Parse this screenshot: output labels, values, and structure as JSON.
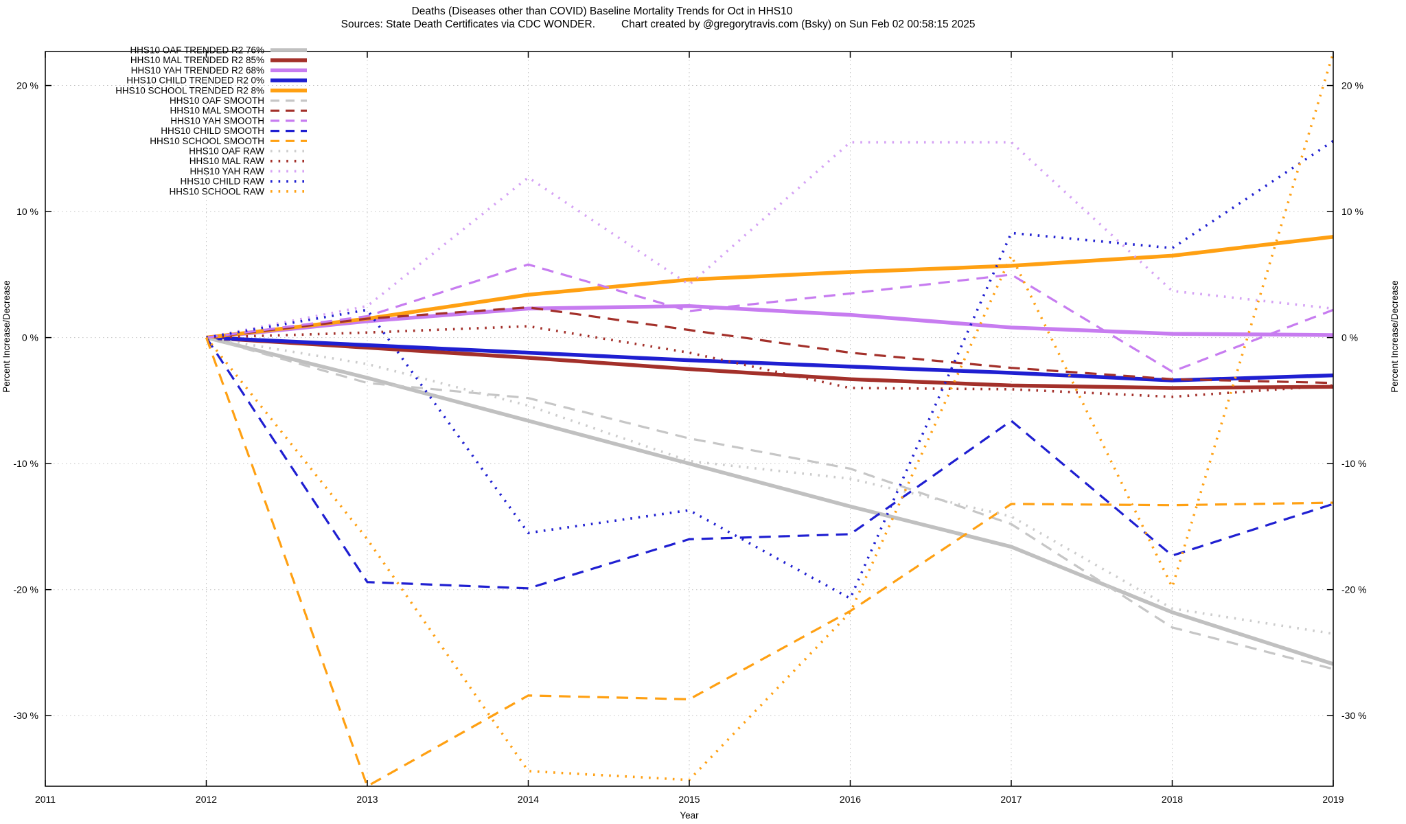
{
  "chart": {
    "title": "Deaths (Diseases other than COVID)  Baseline Mortality Trends for Oct in HHS10",
    "subtitle_sources": "Sources: State Death Certificates via CDC WONDER.",
    "subtitle_credit": "Chart created by @gregorytravis.com (Bsky) on Sun Feb 02 00:58:15 2025",
    "xlabel": "Year",
    "ylabel_left": "Percent Increase/Decrease",
    "ylabel_right": "Percent Increase/Decrease"
  },
  "chart_data": {
    "type": "line",
    "title": "Deaths (Diseases other than COVID)  Baseline Mortality Trends for Oct in HHS10",
    "xlabel": "Year",
    "ylabel": "Percent Increase/Decrease",
    "x_ticks": [
      2011,
      2012,
      2013,
      2014,
      2015,
      2016,
      2017,
      2018,
      2019
    ],
    "xlim": [
      2011,
      2019
    ],
    "ylim": [
      -35.6,
      22.7
    ],
    "y_ticks": [
      20,
      10,
      0,
      -10,
      -20,
      -30
    ],
    "y_tick_labels": [
      "20 %",
      "10 %",
      "0 %",
      "-10 %",
      "-20 %",
      "-30 %"
    ],
    "grid": true,
    "legend_position": "top-left",
    "x": [
      2012,
      2013,
      2014,
      2015,
      2016,
      2017,
      2018,
      2019
    ],
    "series": [
      {
        "label": "HHS10 OAF TRENDED R2  76%",
        "style": "solid",
        "color": "#c0c0c0",
        "values": [
          0,
          -3.2,
          -6.6,
          -10.0,
          -13.4,
          -16.6,
          -21.8,
          -25.9
        ]
      },
      {
        "label": "HHS10 MAL TRENDED R2  85%",
        "style": "solid",
        "color": "#a3302a",
        "values": [
          0,
          -0.8,
          -1.6,
          -2.5,
          -3.3,
          -3.8,
          -4.0,
          -3.9
        ]
      },
      {
        "label": "HHS10 YAH TRENDED R2  68%",
        "style": "solid",
        "color": "#c77cf0",
        "values": [
          0,
          1.3,
          2.3,
          2.5,
          1.8,
          0.8,
          0.3,
          0.2
        ]
      },
      {
        "label": "HHS10 CHILD TRENDED R2   0%",
        "style": "solid",
        "color": "#1f1fd1",
        "values": [
          0,
          -0.6,
          -1.2,
          -1.8,
          -2.3,
          -2.8,
          -3.4,
          -3.0
        ]
      },
      {
        "label": "HHS10 SCHOOL TRENDED R2   8%",
        "style": "solid",
        "color": "#ffa012",
        "values": [
          0,
          1.5,
          3.4,
          4.6,
          5.2,
          5.7,
          6.5,
          8.0
        ]
      },
      {
        "label": "HHS10 OAF SMOOTH",
        "style": "dashed",
        "color": "#c6c6c6",
        "values": [
          0,
          -3.6,
          -4.8,
          -8.0,
          -10.4,
          -14.8,
          -23.0,
          -26.3
        ]
      },
      {
        "label": "HHS10 MAL SMOOTH",
        "style": "dashed",
        "color": "#a3302a",
        "values": [
          0,
          1.5,
          2.4,
          0.6,
          -1.2,
          -2.4,
          -3.3,
          -3.6
        ]
      },
      {
        "label": "HHS10 YAH SMOOTH",
        "style": "dashed",
        "color": "#c77cf0",
        "values": [
          0,
          1.7,
          5.8,
          2.1,
          3.5,
          5.0,
          -2.7,
          2.2
        ]
      },
      {
        "label": "HHS10 CHILD SMOOTH",
        "style": "dashed",
        "color": "#1f1fd1",
        "values": [
          0,
          -19.4,
          -19.9,
          -16.0,
          -15.6,
          -6.6,
          -17.3,
          -13.2
        ]
      },
      {
        "label": "HHS10 SCHOOL SMOOTH",
        "style": "dashed",
        "color": "#ffa012",
        "values": [
          0,
          -35.6,
          -28.4,
          -28.7,
          -21.7,
          -13.2,
          -13.3,
          -13.1
        ]
      },
      {
        "label": "HHS10 OAF RAW",
        "style": "dotted",
        "color": "#cccccc",
        "values": [
          0,
          -2.1,
          -5.4,
          -9.8,
          -11.2,
          -14.2,
          -21.5,
          -23.5
        ]
      },
      {
        "label": "HHS10 MAL RAW",
        "style": "dotted",
        "color": "#a3302a",
        "values": [
          0,
          0.4,
          0.9,
          -1.2,
          -4.0,
          -4.1,
          -4.7,
          -3.8
        ]
      },
      {
        "label": "HHS10 YAH RAW",
        "style": "dotted",
        "color": "#d5a2f5",
        "values": [
          0,
          2.5,
          12.7,
          4.2,
          15.5,
          15.5,
          3.7,
          2.3
        ]
      },
      {
        "label": "HHS10 CHILD RAW",
        "style": "dotted",
        "color": "#1f1fd1",
        "values": [
          0,
          2.2,
          -15.5,
          -13.7,
          -20.7,
          8.3,
          7.1,
          15.6
        ]
      },
      {
        "label": "HHS10 SCHOOL RAW",
        "style": "dotted",
        "color": "#ffa012",
        "values": [
          0,
          -16.0,
          -34.4,
          -35.1,
          -21.8,
          6.5,
          -19.8,
          22.6
        ]
      }
    ]
  }
}
